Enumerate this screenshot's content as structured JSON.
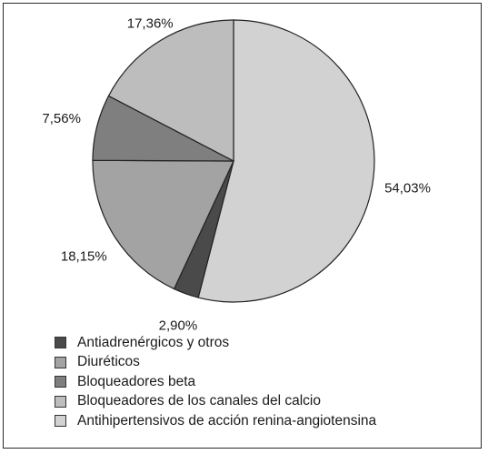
{
  "chart_data": {
    "type": "pie",
    "title": "",
    "slices": [
      {
        "name": "Antihipertensivos de acción renina-angiotensina",
        "value": 54.03,
        "label": "54,03%",
        "color": "#d2d2d2"
      },
      {
        "name": "Antiadrenérgicos y otros",
        "value": 2.9,
        "label": "2,90%",
        "color": "#4a4a4a"
      },
      {
        "name": "Diuréticos",
        "value": 18.15,
        "label": "18,15%",
        "color": "#a3a3a3"
      },
      {
        "name": "Bloqueadores beta",
        "value": 7.56,
        "label": "7,56%",
        "color": "#7f7f7f"
      },
      {
        "name": "Bloqueadores de los canales del calcio",
        "value": 17.36,
        "label": "17,36%",
        "color": "#bdbdbd"
      }
    ],
    "legend": [
      {
        "label": "Antiadrenérgicos y otros",
        "color": "#4a4a4a"
      },
      {
        "label": "Diuréticos",
        "color": "#a3a3a3"
      },
      {
        "label": "Bloqueadores beta",
        "color": "#7f7f7f"
      },
      {
        "label": "Bloqueadores de los canales del calcio",
        "color": "#bdbdbd"
      },
      {
        "label": "Antihipertensivos de acción renina-angiotensina",
        "color": "#d2d2d2"
      }
    ],
    "legend_position": "bottom-left",
    "start_angle": "12 o'clock",
    "direction": "clockwise"
  }
}
